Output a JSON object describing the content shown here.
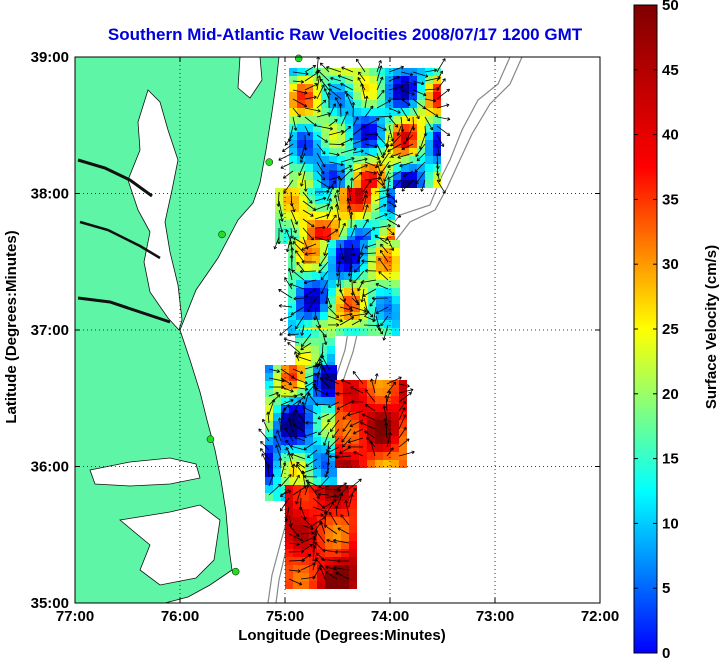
{
  "chart_data": {
    "type": "heatmap",
    "title": "Southern Mid-Atlantic Raw Velocities 2008/07/17 1200 GMT",
    "xlabel": "Longitude (Degrees:Minutes)",
    "ylabel": "Latitude (Degrees:Minutes)",
    "xlim": [
      -77,
      -72
    ],
    "ylim": [
      35,
      39
    ],
    "x_ticks": [
      -77,
      -76,
      -75,
      -74,
      -73,
      -72
    ],
    "x_tick_labels": [
      "77:00",
      "76:00",
      "75:00",
      "74:00",
      "73:00",
      "72:00"
    ],
    "y_ticks": [
      35,
      36,
      37,
      38,
      39
    ],
    "y_tick_labels": [
      "35:00",
      "36:00",
      "37:00",
      "38:00",
      "39:00"
    ],
    "grid": true,
    "colorbar": {
      "label": "Surface Velocity (cm/s)",
      "range": [
        0,
        50
      ],
      "ticks": [
        0,
        5,
        10,
        15,
        20,
        25,
        30,
        35,
        40,
        45,
        50
      ],
      "tick_labels": [
        "0",
        "5",
        "10",
        "15",
        "20",
        "25",
        "30",
        "35",
        "40",
        "45",
        "50"
      ],
      "colormap": "jet",
      "position": "right"
    },
    "colors": {
      "land": "#5ef6a6",
      "title": "#0000dd",
      "station": "#22dd22"
    },
    "stations": [
      {
        "lon": -74.87,
        "lat": 38.99
      },
      {
        "lon": -75.15,
        "lat": 38.23
      },
      {
        "lon": -75.6,
        "lat": 37.7
      },
      {
        "lon": -75.71,
        "lat": 36.2
      },
      {
        "lon": -75.47,
        "lat": 35.23
      }
    ]
  }
}
